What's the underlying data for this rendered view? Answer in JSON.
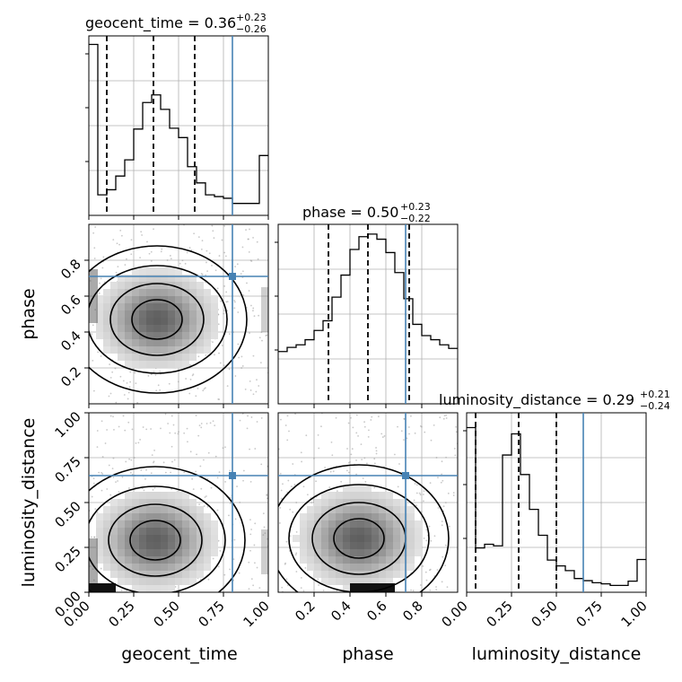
{
  "chart_data": {
    "type": "corner",
    "parameters": [
      "geocent_time",
      "phase",
      "luminosity_distance"
    ],
    "truths": {
      "geocent_time": 0.8,
      "phase": 0.71,
      "luminosity_distance": 0.65
    },
    "truth_color": "#4682b4",
    "grid": true,
    "diagonal": [
      {
        "param": "geocent_time",
        "title_text": "geocent_time = 0.36",
        "title_plus": "+0.23",
        "title_minus": "−0.26",
        "median": 0.36,
        "q16": 0.1,
        "q84": 0.59,
        "range": [
          0,
          1
        ],
        "tick_values": [
          0.0,
          0.25,
          0.5,
          0.75,
          1.0
        ],
        "tick_labels": [
          "0.00",
          "0.25",
          "0.50",
          "0.75",
          "1.00"
        ],
        "hist_edges": [
          0,
          0.05,
          0.1,
          0.15,
          0.2,
          0.25,
          0.3,
          0.35,
          0.4,
          0.45,
          0.5,
          0.55,
          0.6,
          0.65,
          0.7,
          0.75,
          0.8,
          0.85,
          0.9,
          0.95,
          1.0
        ],
        "hist_counts": [
          2000,
          240,
          300,
          460,
          650,
          1010,
          1320,
          1410,
          1240,
          1020,
          910,
          570,
          380,
          240,
          220,
          200,
          140,
          140,
          140,
          700
        ],
        "ymax": 2100
      },
      {
        "param": "phase",
        "title_text": "phase = 0.50",
        "title_plus": "+0.23",
        "title_minus": "−0.22",
        "median": 0.5,
        "q16": 0.28,
        "q84": 0.73,
        "range": [
          0,
          1
        ],
        "tick_values": [
          0.2,
          0.4,
          0.6,
          0.8
        ],
        "tick_labels": [
          "0.2",
          "0.4",
          "0.6",
          "0.8"
        ],
        "hist_edges": [
          0,
          0.05,
          0.1,
          0.15,
          0.2,
          0.25,
          0.3,
          0.35,
          0.4,
          0.45,
          0.5,
          0.55,
          0.6,
          0.65,
          0.7,
          0.75,
          0.8,
          0.85,
          0.9,
          0.95,
          1.0
        ],
        "hist_counts": [
          1020,
          1100,
          1150,
          1250,
          1430,
          1620,
          2080,
          2510,
          3010,
          3260,
          3310,
          3210,
          2950,
          2560,
          2050,
          1550,
          1330,
          1250,
          1150,
          1080
        ],
        "ymax": 3500
      },
      {
        "param": "luminosity_distance",
        "title_text": "luminosity_distance = 0.29",
        "title_plus": "+0.21",
        "title_minus": "−0.24",
        "median": 0.29,
        "q16": 0.05,
        "q84": 0.5,
        "range": [
          0,
          1
        ],
        "tick_values": [
          0.0,
          0.25,
          0.5,
          0.75,
          1.0
        ],
        "tick_labels": [
          "0.00",
          "0.25",
          "0.50",
          "0.75",
          "1.00"
        ],
        "hist_edges": [
          0,
          0.05,
          0.1,
          0.15,
          0.2,
          0.25,
          0.3,
          0.35,
          0.4,
          0.45,
          0.5,
          0.55,
          0.6,
          0.65,
          0.7,
          0.75,
          0.8,
          0.85,
          0.9,
          0.95,
          1.0
        ],
        "hist_counts": [
          3120,
          840,
          910,
          880,
          2600,
          3000,
          2230,
          1570,
          1080,
          610,
          500,
          410,
          260,
          220,
          180,
          160,
          130,
          130,
          210,
          620
        ],
        "ymax": 3400
      }
    ],
    "pairs": [
      {
        "x": "geocent_time",
        "y": "phase",
        "mode": {
          "x": 0.38,
          "y": 0.47
        }
      },
      {
        "x": "geocent_time",
        "y": "luminosity_distance",
        "mode": {
          "x": 0.37,
          "y": 0.29
        }
      },
      {
        "x": "phase",
        "y": "luminosity_distance",
        "mode": {
          "x": 0.45,
          "y": 0.3
        }
      }
    ],
    "axis_labels": {
      "bottom": [
        "geocent_time",
        "phase",
        "luminosity_distance"
      ],
      "left": [
        "phase",
        "luminosity_distance"
      ]
    }
  }
}
